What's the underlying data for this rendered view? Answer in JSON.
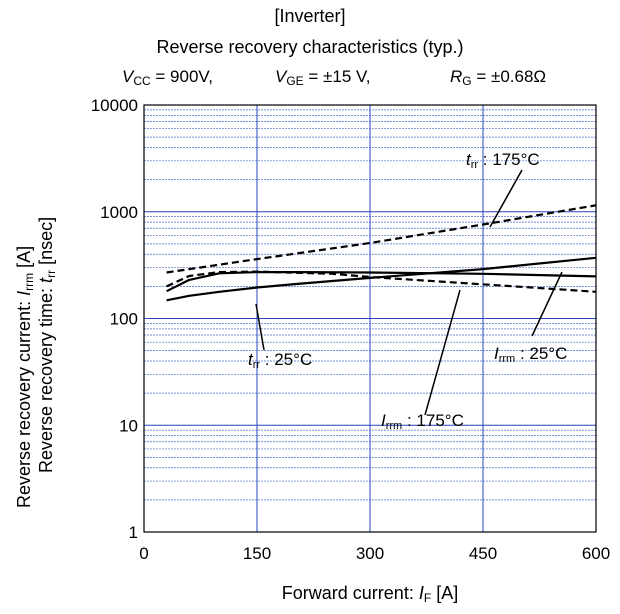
{
  "title": "[Inverter]",
  "subtitle": "Reverse recovery characteristics  (typ.)",
  "conditions": {
    "vcc_sym": "V",
    "vcc_sub": "CC",
    "vcc_val": " = 900V,",
    "vge_sym": "V",
    "vge_sub": "GE",
    "vge_val": " = ±15 V,",
    "rg_sym": "R",
    "rg_sub": "G",
    "rg_val": " = ±0.68Ω"
  },
  "chart_data": {
    "type": "line",
    "xlabel": "Forward current: I_F [A]",
    "ylabel": "Reverse recovery current: I_rrm [A] / Reverse recovery time: t_rr [nsec]",
    "xlim": [
      0,
      600
    ],
    "ylim": [
      1,
      10000
    ],
    "y_scale": "log",
    "grid": true,
    "x_ticks": [
      "0",
      "150",
      "300",
      "450",
      "600"
    ],
    "y_ticks": [
      "1",
      "10",
      "100",
      "1000",
      "10000"
    ],
    "series": [
      {
        "name": "t_rr : 175°C",
        "style": "dashed",
        "x": [
          30,
          150,
          300,
          450,
          600
        ],
        "y": [
          270,
          360,
          510,
          760,
          1150
        ]
      },
      {
        "name": "t_rr : 25°C",
        "style": "solid",
        "x": [
          30,
          60,
          100,
          150,
          200,
          300,
          450,
          600
        ],
        "y": [
          180,
          230,
          265,
          272,
          272,
          270,
          262,
          248
        ]
      },
      {
        "name": "I_rrm : 25°C",
        "style": "dashed",
        "x": [
          30,
          60,
          100,
          150,
          250,
          300,
          400,
          500,
          600
        ],
        "y": [
          200,
          250,
          272,
          275,
          262,
          245,
          220,
          198,
          178
        ]
      },
      {
        "name": "I_rrm : 175°C",
        "style": "solid",
        "x": [
          30,
          60,
          100,
          150,
          200,
          300,
          450,
          600
        ],
        "y": [
          148,
          163,
          178,
          195,
          210,
          240,
          290,
          370
        ]
      }
    ]
  },
  "annotations": {
    "trr175": {
      "sym": "t",
      "sub": "rr",
      "text": " : 175°C"
    },
    "trr25": {
      "sym": "t",
      "sub": "rr",
      "text": " : 25°C"
    },
    "irrm25": {
      "sym": "I",
      "sub": "rrm",
      "text": " : 25°C"
    },
    "irrm175": {
      "sym": "I",
      "sub": "rrm",
      "text": " : 175°C"
    }
  },
  "axis_labels": {
    "y1_text": "Reverse recovery current:  ",
    "y1_sym": "I",
    "y1_sub": "rrm",
    "y1_unit": "  [A]",
    "y2_text": "Reverse recovery time:  ",
    "y2_sym": "t",
    "y2_sub": "rr",
    "y2_unit": " [nsec]",
    "x_text": "Forward current: ",
    "x_sym": "I",
    "x_sub": "F",
    "x_unit": " [A]"
  }
}
